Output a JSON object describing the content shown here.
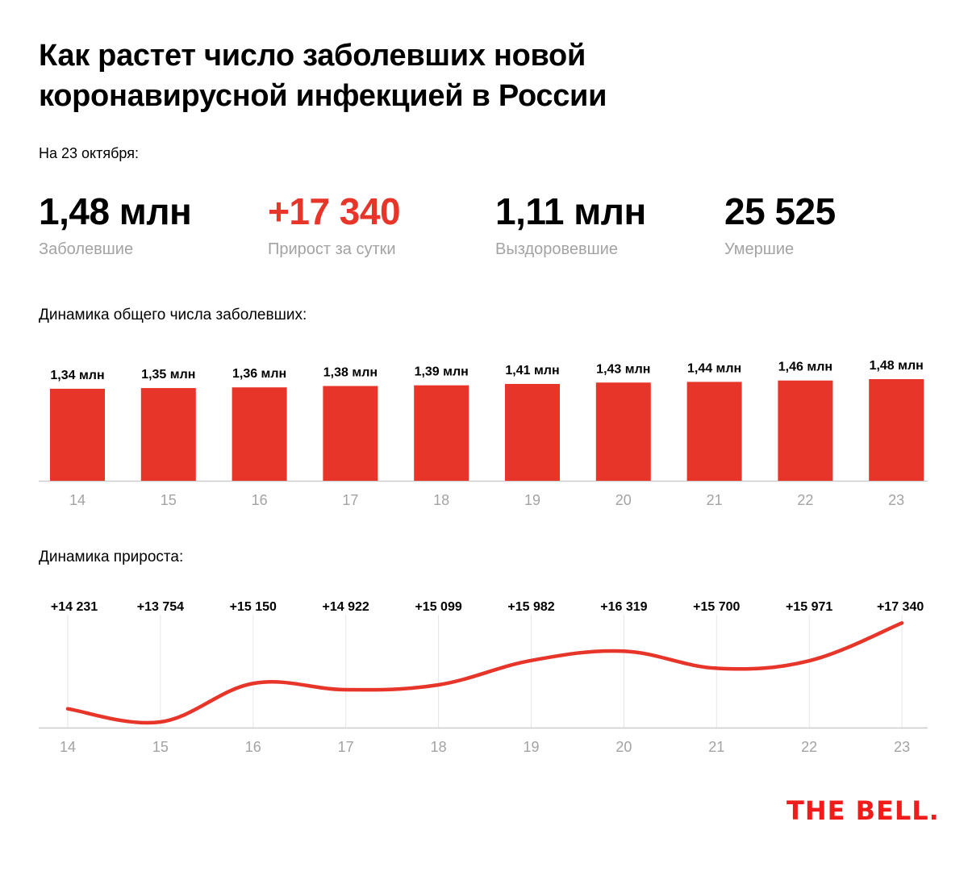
{
  "title": "Как растет число заболевших новой коронавирусной инфекцией в России",
  "date_label": "На 23 октября:",
  "stats": [
    {
      "value": "1,48 млн",
      "label": "Заболевшие",
      "highlight": false
    },
    {
      "value": "+17 340",
      "label": "Прирост за сутки",
      "highlight": true
    },
    {
      "value": "1,11 млн",
      "label": "Выздоровевшие",
      "highlight": false
    },
    {
      "value": "25 525",
      "label": "Умершие",
      "highlight": false
    }
  ],
  "colors": {
    "accent": "#e8352a",
    "muted": "#a3a3a3",
    "grid": "#e6e6e6",
    "axis": "#cccccc",
    "logo": "#f01c1c"
  },
  "logo": "THE BELL.",
  "chart_data": [
    {
      "type": "bar",
      "title": "Динамика общего числа заболевших:",
      "categories": [
        "14",
        "15",
        "16",
        "17",
        "18",
        "19",
        "20",
        "21",
        "22",
        "23"
      ],
      "values": [
        1.34,
        1.35,
        1.36,
        1.38,
        1.39,
        1.41,
        1.43,
        1.44,
        1.46,
        1.48
      ],
      "data_labels": [
        "1,34 млн",
        "1,35 млн",
        "1,36 млн",
        "1,38 млн",
        "1,39 млн",
        "1,41 млн",
        "1,43 млн",
        "1,44 млн",
        "1,46 млн",
        "1,48 млн"
      ],
      "unit": "млн",
      "xlabel": "",
      "ylabel": "",
      "ylim": [
        0,
        1.48
      ],
      "grid": false
    },
    {
      "type": "line",
      "title": "Динамика прироста:",
      "categories": [
        "14",
        "15",
        "16",
        "17",
        "18",
        "19",
        "20",
        "21",
        "22",
        "23"
      ],
      "values": [
        14231,
        13754,
        15150,
        14922,
        15099,
        15982,
        16319,
        15700,
        15971,
        17340
      ],
      "data_labels": [
        "+14 231",
        "+13 754",
        "+15 150",
        "+14 922",
        "+15 099",
        "+15 982",
        "+16 319",
        "+15 700",
        "+15 971",
        "+17 340"
      ],
      "xlabel": "",
      "ylabel": "",
      "ylim": [
        13550,
        17700
      ],
      "grid": true,
      "smooth": true
    }
  ]
}
